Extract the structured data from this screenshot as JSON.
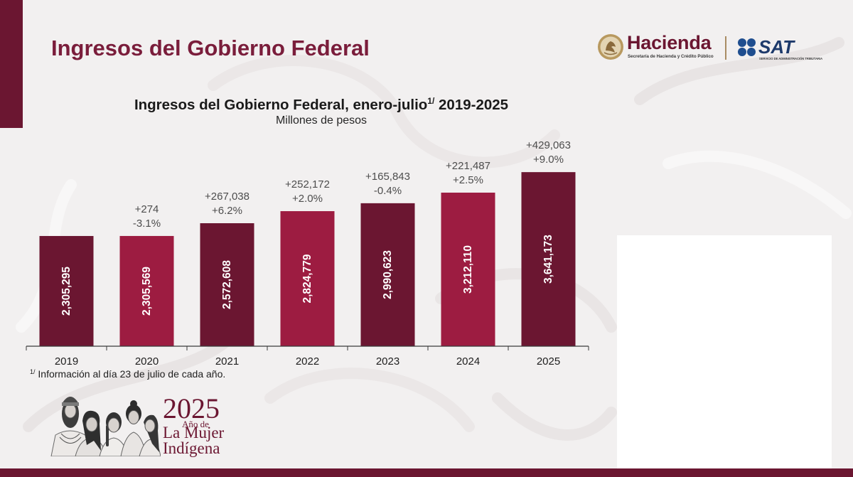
{
  "slide": {
    "title": "Ingresos del Gobierno Federal",
    "footnote_marker": "1/",
    "footnote_text": "Información al día 23 de julio de cada año."
  },
  "logos": {
    "hacienda": {
      "icon": "national-seal-icon",
      "name": "Hacienda",
      "subtitle": "Secretaría de Hacienda y Crédito Público"
    },
    "sat": {
      "icon": "sat-dots-icon",
      "name": "SAT",
      "subtitle": "SERVICIO DE ADMINISTRACIÓN TRIBUTARIA"
    },
    "year_emblem": {
      "icon": "indigenous-women-illustration",
      "year": "2025",
      "line1": "Año de",
      "line2": "La Mujer",
      "line3": "Indígena"
    }
  },
  "colors": {
    "maroon": "#6b1631",
    "title": "#7a1d3b",
    "sat_blue": "#1f4e8f",
    "gold": "#a98c63",
    "annotation": "#4d4d4d"
  },
  "chart_data": {
    "type": "bar",
    "title": "Ingresos del Gobierno Federal, enero-julio",
    "title_note": "1/",
    "title_period": "2019-2025",
    "subtitle": "Millones de pesos",
    "categories": [
      "2019",
      "2020",
      "2021",
      "2022",
      "2023",
      "2024",
      "2025"
    ],
    "values": [
      2305295,
      2305569,
      2572608,
      2824779,
      2990623,
      3212110,
      3641173
    ],
    "data_labels": [
      "2,305,295",
      "2,305,569",
      "2,572,608",
      "2,824,779",
      "2,990,623",
      "3,212,110",
      "3,641,173"
    ],
    "change_labels": [
      null,
      "+274",
      "+267,038",
      "+252,172",
      "+165,843",
      "+221,487",
      "+429,063"
    ],
    "percent_labels": [
      null,
      "-3.1%",
      "+6.2%",
      "+2.0%",
      "-0.4%",
      "+2.5%",
      "+9.0%"
    ],
    "bar_colors": [
      "#6b1631",
      "#9d1c41",
      "#6b1631",
      "#9d1c41",
      "#6b1631",
      "#9d1c41",
      "#6b1631"
    ],
    "ylim": [
      0,
      4000000
    ],
    "grid": false
  }
}
